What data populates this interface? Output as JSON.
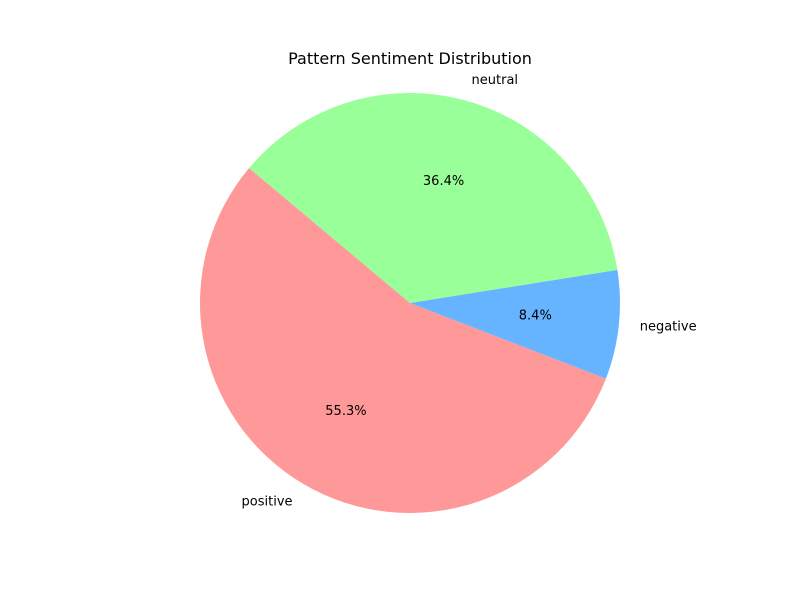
{
  "chart_data": {
    "type": "pie",
    "title": "Pattern Sentiment Distribution",
    "slices": [
      {
        "label": "positive",
        "value": 55.3,
        "percent_label": "55.3%",
        "color": "#ff9999"
      },
      {
        "label": "negative",
        "value": 8.4,
        "percent_label": "8.4%",
        "color": "#66b3ff"
      },
      {
        "label": "neutral",
        "value": 36.4,
        "percent_label": "36.4%",
        "color": "#99ff99"
      }
    ],
    "start_angle_deg": 140,
    "direction": "counterclockwise",
    "legend": "none"
  }
}
